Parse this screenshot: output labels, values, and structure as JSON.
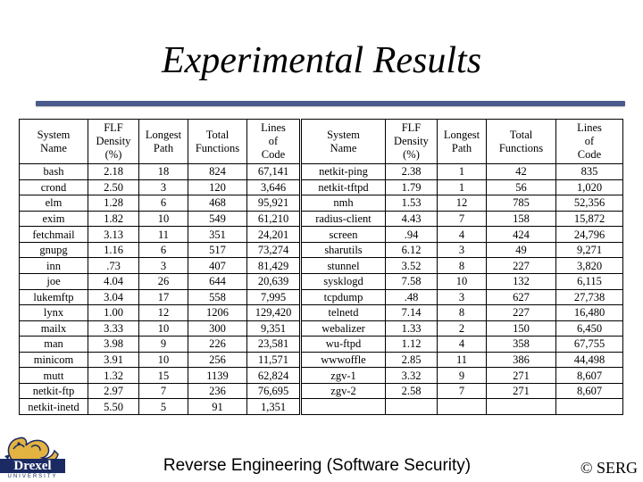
{
  "slide": {
    "title": "Experimental Results",
    "footer": "Reverse Engineering (Software Security)",
    "copyright": "© SERG",
    "logo": {
      "wordmark": "Drexel",
      "subtitle": "UNIVERSITY"
    },
    "colors": {
      "title_rule": "#4b5a8c",
      "logo_navy": "#1b2a63",
      "logo_gold": "#e3b341"
    }
  },
  "table": {
    "headers": [
      [
        "System",
        "Name"
      ],
      [
        "FLF",
        "Density",
        "(%)"
      ],
      [
        "Longest",
        "Path"
      ],
      [
        "Total",
        "Functions"
      ],
      [
        "Lines",
        "of",
        "Code"
      ],
      [
        "System",
        "Name"
      ],
      [
        "FLF",
        "Density",
        "(%)"
      ],
      [
        "Longest",
        "Path"
      ],
      [
        "Total",
        "Functions"
      ],
      [
        "Lines",
        "of",
        "Code"
      ]
    ],
    "rows": [
      [
        "bash",
        "2.18",
        "18",
        "824",
        "67,141",
        "netkit-ping",
        "2.38",
        "1",
        "42",
        "835"
      ],
      [
        "crond",
        "2.50",
        "3",
        "120",
        "3,646",
        "netkit-tftpd",
        "1.79",
        "1",
        "56",
        "1,020"
      ],
      [
        "elm",
        "1.28",
        "6",
        "468",
        "95,921",
        "nmh",
        "1.53",
        "12",
        "785",
        "52,356"
      ],
      [
        "exim",
        "1.82",
        "10",
        "549",
        "61,210",
        "radius-client",
        "4.43",
        "7",
        "158",
        "15,872"
      ],
      [
        "fetchmail",
        "3.13",
        "11",
        "351",
        "24,201",
        "screen",
        ".94",
        "4",
        "424",
        "24,796"
      ],
      [
        "gnupg",
        "1.16",
        "6",
        "517",
        "73,274",
        "sharutils",
        "6.12",
        "3",
        "49",
        "9,271"
      ],
      [
        "inn",
        ".73",
        "3",
        "407",
        "81,429",
        "stunnel",
        "3.52",
        "8",
        "227",
        "3,820"
      ],
      [
        "joe",
        "4.04",
        "26",
        "644",
        "20,639",
        "sysklogd",
        "7.58",
        "10",
        "132",
        "6,115"
      ],
      [
        "lukemftp",
        "3.04",
        "17",
        "558",
        "7,995",
        "tcpdump",
        ".48",
        "3",
        "627",
        "27,738"
      ],
      [
        "lynx",
        "1.00",
        "12",
        "1206",
        "129,420",
        "telnetd",
        "7.14",
        "8",
        "227",
        "16,480"
      ],
      [
        "mailx",
        "3.33",
        "10",
        "300",
        "9,351",
        "webalizer",
        "1.33",
        "2",
        "150",
        "6,450"
      ],
      [
        "man",
        "3.98",
        "9",
        "226",
        "23,581",
        "wu-ftpd",
        "1.12",
        "4",
        "358",
        "67,755"
      ],
      [
        "minicom",
        "3.91",
        "10",
        "256",
        "11,571",
        "wwwoffle",
        "2.85",
        "11",
        "386",
        "44,498"
      ],
      [
        "mutt",
        "1.32",
        "15",
        "1139",
        "62,824",
        "zgv-1",
        "3.32",
        "9",
        "271",
        "8,607"
      ],
      [
        "netkit-ftp",
        "2.97",
        "7",
        "236",
        "76,695",
        "zgv-2",
        "2.58",
        "7",
        "271",
        "8,607"
      ],
      [
        "netkit-inetd",
        "5.50",
        "5",
        "91",
        "1,351",
        "",
        "",
        "",
        "",
        ""
      ]
    ]
  }
}
